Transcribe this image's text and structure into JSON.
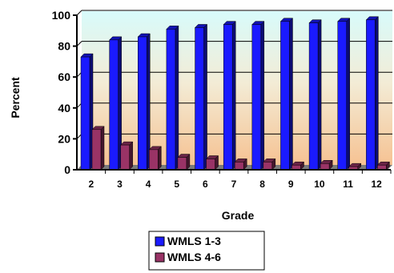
{
  "chart_data": {
    "type": "bar",
    "xlabel": "Grade",
    "ylabel": "Percent",
    "categories": [
      "2",
      "3",
      "4",
      "5",
      "6",
      "7",
      "8",
      "9",
      "10",
      "11",
      "12"
    ],
    "ylim": [
      0,
      100
    ],
    "yticks": [
      "0",
      "20",
      "40",
      "60",
      "80",
      "100"
    ],
    "grid": true,
    "legend_position": "bottom",
    "series": [
      {
        "name": "WMLS 1-3",
        "color": "#1a1aff",
        "values": [
          73,
          84,
          86,
          91,
          92,
          94,
          94,
          96,
          95,
          96,
          97
        ]
      },
      {
        "name": "WMLS 4-6",
        "color": "#993366",
        "values": [
          26,
          16,
          13,
          8,
          7,
          5,
          5,
          3,
          4,
          2,
          3
        ]
      }
    ]
  }
}
